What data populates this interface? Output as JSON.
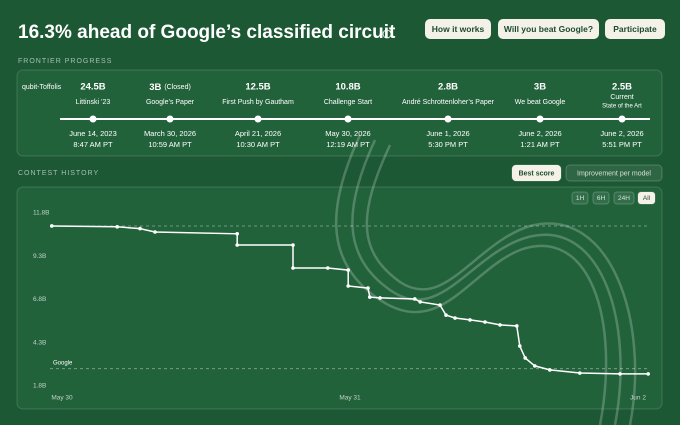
{
  "header": {
    "title": "16.3% ahead of Google’s classified circuit",
    "buttons": [
      "How it works",
      "Will you beat Google?",
      "Participate"
    ]
  },
  "frontier": {
    "label": "FRONTIER PROGRESS",
    "metric": "qubit-Toffolis",
    "milestones": [
      {
        "value": "24.5B",
        "name": "Littinski ’23",
        "date": "June 14, 2023",
        "time": "8:47 AM PT"
      },
      {
        "value": "3B",
        "note": "(Closed)",
        "name": "Google’s Paper",
        "date": "March 30, 2026",
        "time": "10:59 AM PT"
      },
      {
        "value": "12.5B",
        "name": "First Push by Gautham",
        "date": "April 21, 2026",
        "time": "10:30 AM PT"
      },
      {
        "value": "10.8B",
        "name": "Challenge Start",
        "date": "May 30, 2026",
        "time": "12:19 AM PT"
      },
      {
        "value": "2.8B",
        "name": "André Schrottenloher’s Paper",
        "date": "June 1, 2026",
        "time": "5:30 PM PT"
      },
      {
        "value": "3B",
        "name": "We beat Google",
        "date": "June 2, 2026",
        "time": "1:21 AM PT"
      },
      {
        "value": "2.5B",
        "name": "Current",
        "subname": "State of the Art",
        "date": "June 2, 2026",
        "time": "5:51 PM PT"
      }
    ]
  },
  "history": {
    "label": "CONTEST HISTORY",
    "tabs": [
      "Best score",
      "Improvement per model"
    ],
    "active_tab": 0,
    "ranges": [
      "1H",
      "6H",
      "24H",
      "All"
    ],
    "active_range": 3
  },
  "chart_data": {
    "type": "line",
    "x": [
      0.3,
      11.2,
      15,
      17.5,
      31.2,
      31.2,
      40.5,
      40.5,
      46.3,
      49.7,
      49.7,
      53,
      53.3,
      55,
      60.8,
      61.7,
      65,
      66,
      67.5,
      70,
      72.5,
      75,
      77.8,
      78.3,
      79.2,
      80.8,
      83.3,
      88.3,
      95,
      99.7
    ],
    "series": [
      {
        "color": "#ffffff",
        "values": [
          11.05,
          11.0,
          10.9,
          10.7,
          10.6,
          9.95,
          9.95,
          8.62,
          8.62,
          8.5,
          7.58,
          7.46,
          6.94,
          6.89,
          6.83,
          6.66,
          6.48,
          5.9,
          5.73,
          5.62,
          5.5,
          5.33,
          5.27,
          4.11,
          3.42,
          2.96,
          2.73,
          2.55,
          2.5,
          2.5
        ]
      }
    ],
    "xlim": [
      0,
      100
    ],
    "xticks": [
      {
        "value": 2,
        "label": "May 30"
      },
      {
        "value": 50,
        "label": "May 31"
      },
      {
        "value": 98,
        "label": "Jun 2"
      }
    ],
    "ylim": [
      1.8,
      11.8
    ],
    "yticks": [
      {
        "value": 11.8,
        "label": "11.8B"
      },
      {
        "value": 9.3,
        "label": "9.3B"
      },
      {
        "value": 6.8,
        "label": "6.8B"
      },
      {
        "value": 4.3,
        "label": "4.3B"
      },
      {
        "value": 1.8,
        "label": "1.8B"
      }
    ],
    "reference_lines": [
      {
        "value": 11.05
      },
      {
        "value": 2.8,
        "label": "Google"
      }
    ]
  }
}
